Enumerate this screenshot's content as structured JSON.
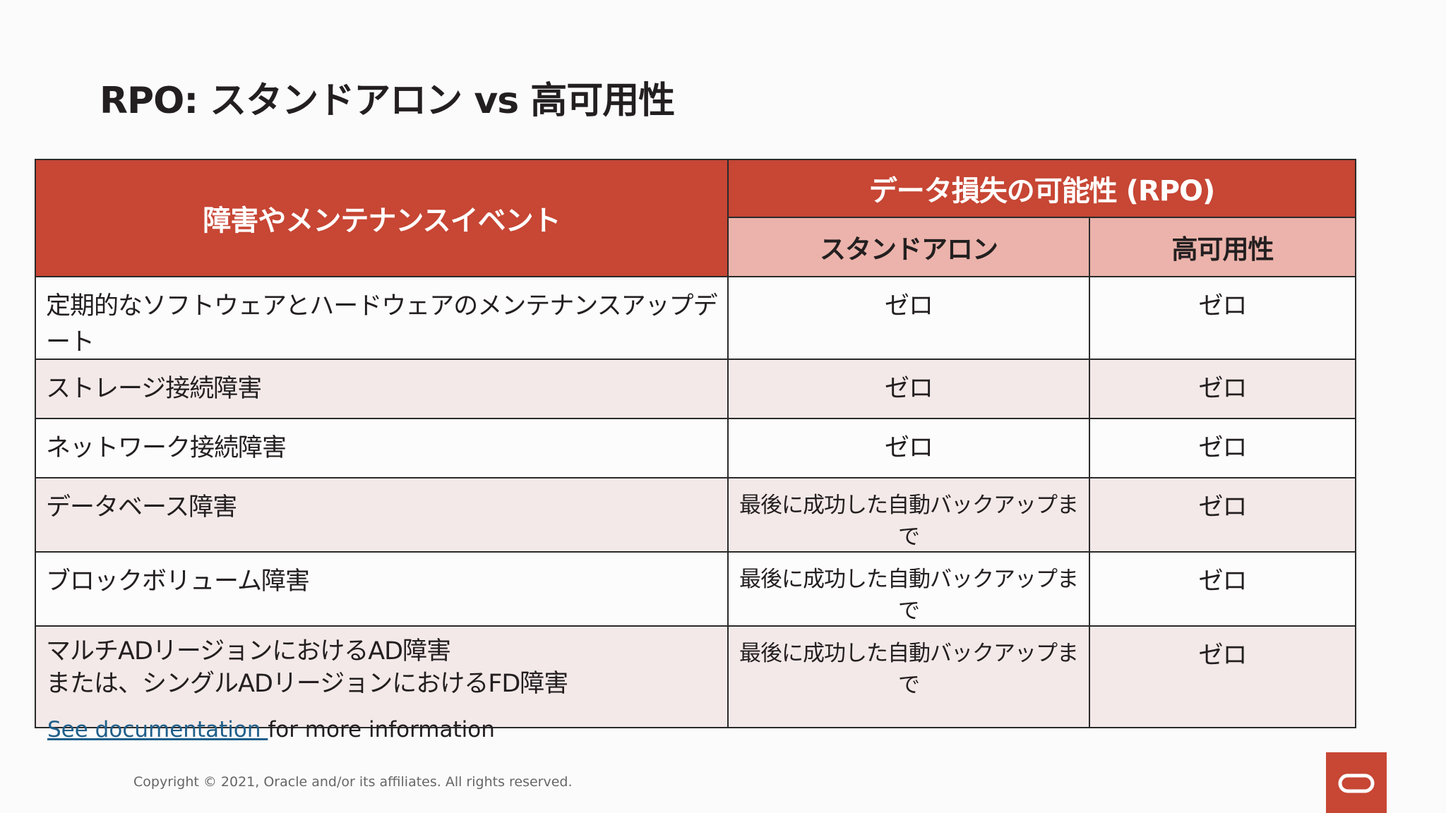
{
  "slide": {
    "title": "RPO: スタンドアロン vs 高可用性"
  },
  "table": {
    "header": {
      "event": "障害やメンテナンスイベント",
      "group": "データ損失の可能性 (RPO)",
      "standalone": "スタンドアロン",
      "ha": "高可用性"
    },
    "rows": [
      {
        "event": "定期的なソフトウェアとハードウェアのメンテナンスアップデート",
        "standalone": "ゼロ",
        "ha": "ゼロ"
      },
      {
        "event": "ストレージ接続障害",
        "standalone": "ゼロ",
        "ha": "ゼロ"
      },
      {
        "event": "ネットワーク接続障害",
        "standalone": "ゼロ",
        "ha": "ゼロ"
      },
      {
        "event": "データベース障害",
        "standalone": "最後に成功した自動バックアップまで",
        "ha": "ゼロ"
      },
      {
        "event": "ブロックボリューム障害",
        "standalone": "最後に成功した自動バックアップまで",
        "ha": "ゼロ"
      },
      {
        "event_line1": "マルチADリージョンにおけるAD障害",
        "event_line2": "または、シングルADリージョンにおけるFD障害",
        "standalone": "最後に成功した自動バックアップまで",
        "ha": "ゼロ"
      }
    ]
  },
  "footer": {
    "link_text": "See documentation ",
    "note_text": "for more information",
    "copyright": "Copyright © 2021, Oracle and/or its affiliates. All rights reserved."
  },
  "brand": {
    "icon": "oracle-logo-icon",
    "color": "#c74634"
  }
}
